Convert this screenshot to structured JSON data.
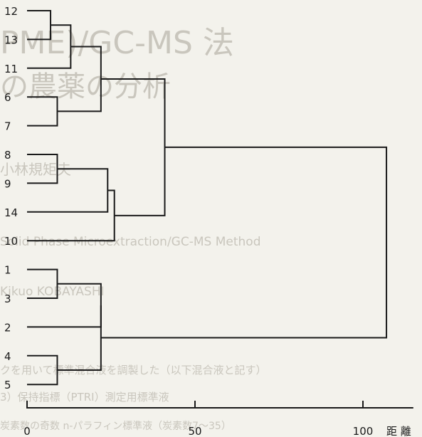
{
  "chart_data": {
    "type": "dendrogram",
    "xlabel": "距 離",
    "xlim": [
      0,
      115
    ],
    "xticks": [
      0,
      50,
      100
    ],
    "leaves": [
      "12",
      "13",
      "11",
      "6",
      "7",
      "8",
      "9",
      "14",
      "10",
      "1",
      "3",
      "2",
      "4",
      "5"
    ],
    "merges": [
      {
        "a": "12",
        "b": "13",
        "distance": 7
      },
      {
        "a": "12-13",
        "b": "11",
        "distance": 13
      },
      {
        "a": "6",
        "b": "7",
        "distance": 9
      },
      {
        "a": "12-13-11",
        "b": "6-7",
        "distance": 22
      },
      {
        "a": "12-13-11-6-7",
        "b": "8-9-14-10",
        "distance": 41
      },
      {
        "a": "8",
        "b": "9",
        "distance": 9
      },
      {
        "a": "8-9",
        "b": "14",
        "distance": 24
      },
      {
        "a": "8-9-14",
        "b": "10",
        "distance": 26
      },
      {
        "a": "1",
        "b": "3",
        "distance": 9
      },
      {
        "a": "1-3",
        "b": "2",
        "distance": 22
      },
      {
        "a": "4",
        "b": "5",
        "distance": 9
      },
      {
        "a": "1-3-2",
        "b": "4-5",
        "distance": 22
      },
      {
        "a": "group-upper",
        "b": "group-lower",
        "distance": 107
      }
    ]
  },
  "background": {
    "lines": [
      "PME)/GC-MS 法",
      "の農薬の分析",
      "小林規矩夫",
      "Solid Phase Microextraction/GC-MS Method",
      "Kikuo KOBAYASHI",
      "クを用いて標準混合液を調製した（以下混合液と記す）",
      "3）保持指標（PTRI）測定用標準液",
      "炭素数の奇数 n-パラフィン標準液（炭素数7〜35）"
    ]
  }
}
